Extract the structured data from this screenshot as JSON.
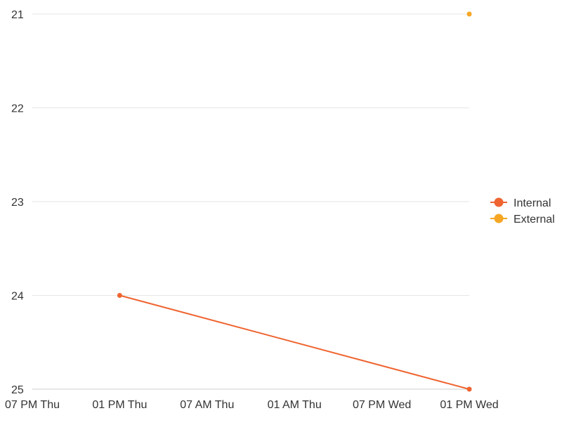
{
  "chart_data": {
    "type": "line",
    "x": [
      "07 PM Thu",
      "01 PM Thu",
      "07 AM Thu",
      "01 AM Thu",
      "07 PM Wed",
      "01 PM Wed"
    ],
    "y_ticks": [
      "21",
      "22",
      "23",
      "24",
      "25"
    ],
    "ylim": [
      21,
      25
    ],
    "y_reversed": true,
    "grid": true,
    "legend_position": "right",
    "series": [
      {
        "name": "Internal",
        "color": "#ef6430",
        "values": [
          null,
          24,
          null,
          null,
          null,
          25
        ]
      },
      {
        "name": "External",
        "color": "#f5a623",
        "values": [
          null,
          null,
          null,
          null,
          null,
          21
        ]
      }
    ]
  }
}
